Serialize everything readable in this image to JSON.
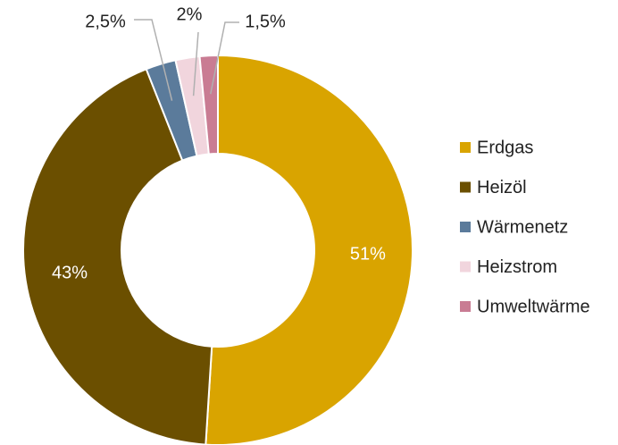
{
  "chart_data": {
    "type": "donut",
    "categories": [
      "Erdgas",
      "Heizöl",
      "Wärmenetz",
      "Heizstrom",
      "Umweltwärme"
    ],
    "values": [
      51,
      43,
      2.5,
      2,
      1.5
    ],
    "value_labels": [
      "51%",
      "43%",
      "2,5%",
      "2%",
      "1,5%"
    ],
    "colors": [
      "#d9a400",
      "#6b4f00",
      "#5b7b9b",
      "#f1d5dd",
      "#c97c93"
    ],
    "legend": "right"
  }
}
